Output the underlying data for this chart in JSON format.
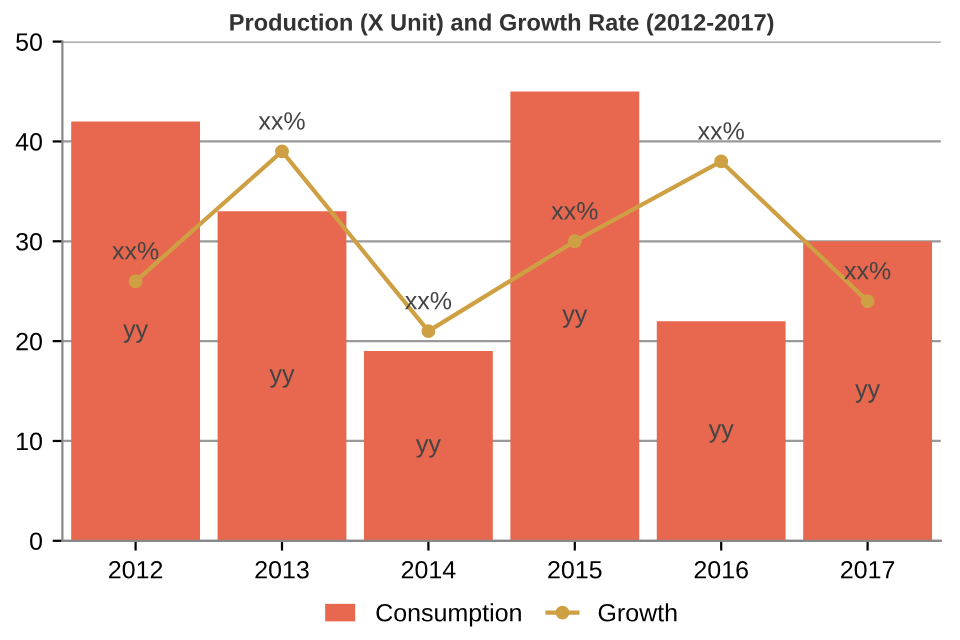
{
  "chart_data": {
    "type": "bar",
    "title": "Production (X Unit) and Growth Rate (2012-2017)",
    "categories": [
      "2012",
      "2013",
      "2014",
      "2015",
      "2016",
      "2017"
    ],
    "series": [
      {
        "name": "Consumption",
        "color": "#e8674f",
        "values": [
          42,
          33,
          19,
          45,
          22,
          30
        ],
        "value_labels": [
          "yy",
          "yy",
          "yy",
          "yy",
          "yy",
          "yy"
        ]
      },
      {
        "name": "Growth",
        "type": "line",
        "color": "#cfa043",
        "marker": "circle",
        "values": [
          26,
          39,
          21,
          30,
          38,
          24
        ],
        "value_labels": [
          "xx%",
          "xx%",
          "xx%",
          "xx%",
          "xx%",
          "xx%"
        ]
      }
    ],
    "ylim": [
      0,
      50
    ],
    "yticks": [
      0,
      10,
      20,
      30,
      40,
      50
    ],
    "grid": "y",
    "legend": "bottom"
  }
}
